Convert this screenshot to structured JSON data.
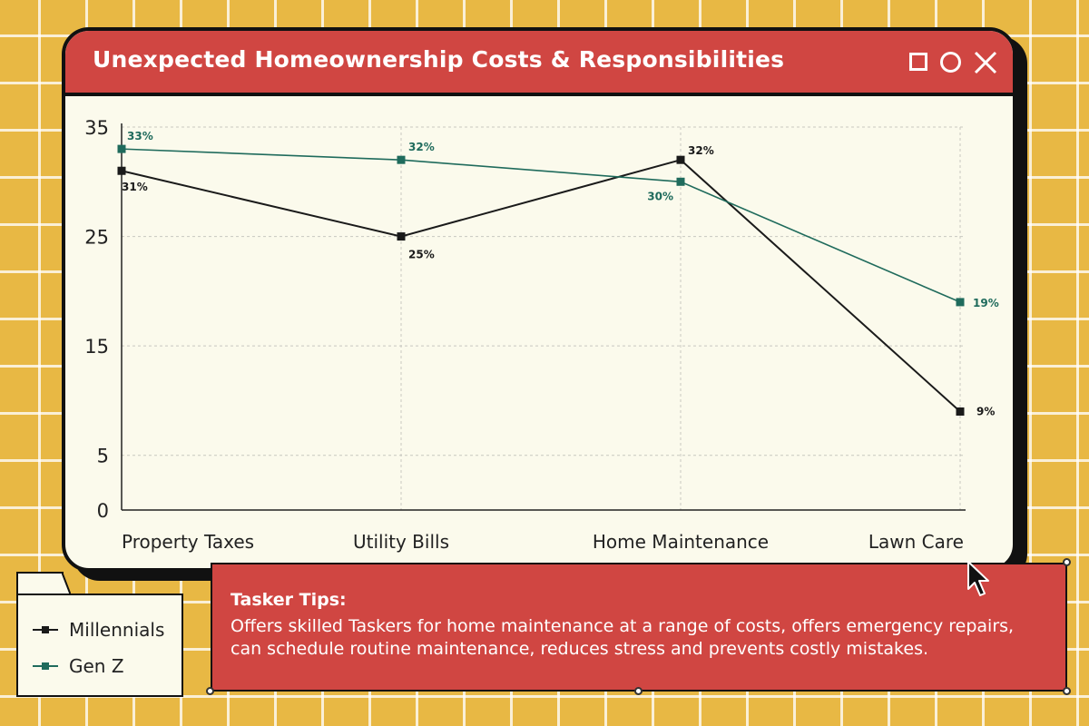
{
  "window": {
    "title": "Unexpected Homeownership Costs & Responsibilities",
    "controls": [
      "maximize-icon",
      "minimize-icon",
      "close-icon"
    ]
  },
  "chart_data": {
    "type": "line",
    "title": "Unexpected Homeownership Costs & Responsibilities",
    "xlabel": "",
    "ylabel": "",
    "categories": [
      "Property Taxes",
      "Utility Bills",
      "Home Maintenance",
      "Lawn Care"
    ],
    "ylim": [
      0,
      35
    ],
    "yticks": [
      0,
      5,
      15,
      25,
      35
    ],
    "grid": true,
    "series": [
      {
        "name": "Millennials",
        "values": [
          31,
          25,
          32,
          9
        ],
        "labels": [
          "31%",
          "25%",
          "32%",
          "9%"
        ],
        "color": "#1a1a1a"
      },
      {
        "name": "Gen Z",
        "values": [
          33,
          32,
          30,
          19
        ],
        "labels": [
          "33%",
          "32%",
          "30%",
          "19%"
        ],
        "color": "#1f6b5c"
      }
    ],
    "legend_position": "bottom-left"
  },
  "tips": {
    "title": "Tasker Tips:",
    "text": "Offers skilled Taskers for home maintenance at a range of costs, offers emergency repairs, can schedule routine maintenance, reduces stress and prevents costly mistakes."
  },
  "colors": {
    "background": "#e8b844",
    "accent_red": "#d04642",
    "panel": "#fbfaec",
    "millennials": "#1a1a1a",
    "genz": "#1f6b5c"
  }
}
